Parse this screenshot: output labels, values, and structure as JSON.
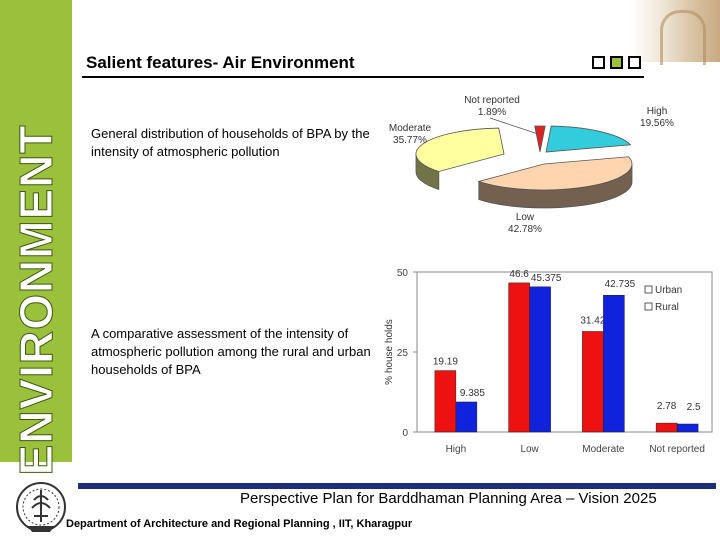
{
  "slide": {
    "sidebar_label": "ENVIRONMENT",
    "title": "Salient features- Air Environment",
    "nav_boxes": [
      "box-1",
      "box-2",
      "box-3"
    ],
    "text_pie": "General distribution of households of BPA by the intensity of atmospheric pollution",
    "text_bar": "A comparative assessment of the intensity of atmospheric pollution among the rural and urban households of BPA",
    "footer_title": "Perspective Plan for Barddhaman Planning Area – Vision 2025",
    "footer_dept": "Department of Architecture and Regional Planning , IIT, Kharagpur"
  },
  "chart_data": [
    {
      "type": "pie",
      "slices": [
        {
          "label": "High",
          "value": 19.56,
          "value_label": "19.56%",
          "color": "#33ccdd"
        },
        {
          "label": "Low",
          "value": 42.78,
          "value_label": "42.78%",
          "color": "#ffd5b0"
        },
        {
          "label": "Moderate",
          "value": 35.77,
          "value_label": "35.77%",
          "color": "#ffffa0"
        },
        {
          "label": "Not reported",
          "value": 1.89,
          "value_label": "1.89%",
          "color": "#dd2222"
        }
      ]
    },
    {
      "type": "bar",
      "ylabel": "% house holds",
      "ylim": [
        0,
        50
      ],
      "yticks": [
        "0",
        "25",
        "50"
      ],
      "categories": [
        "High",
        "Low",
        "Moderate",
        "Not reported"
      ],
      "series": [
        {
          "name": "Urban",
          "color": "#ee1111",
          "values": [
            19.19,
            46.6,
            31.42,
            2.78
          ],
          "labels": [
            "19.19",
            "46.6",
            "31.42",
            "2.78"
          ]
        },
        {
          "name": "Rural",
          "color": "#1122dd",
          "values": [
            9.385,
            45.375,
            42.735,
            2.5
          ],
          "labels": [
            "9.385",
            "45.375",
            "42.735",
            "2.5"
          ]
        }
      ],
      "legend": "top-right"
    }
  ]
}
